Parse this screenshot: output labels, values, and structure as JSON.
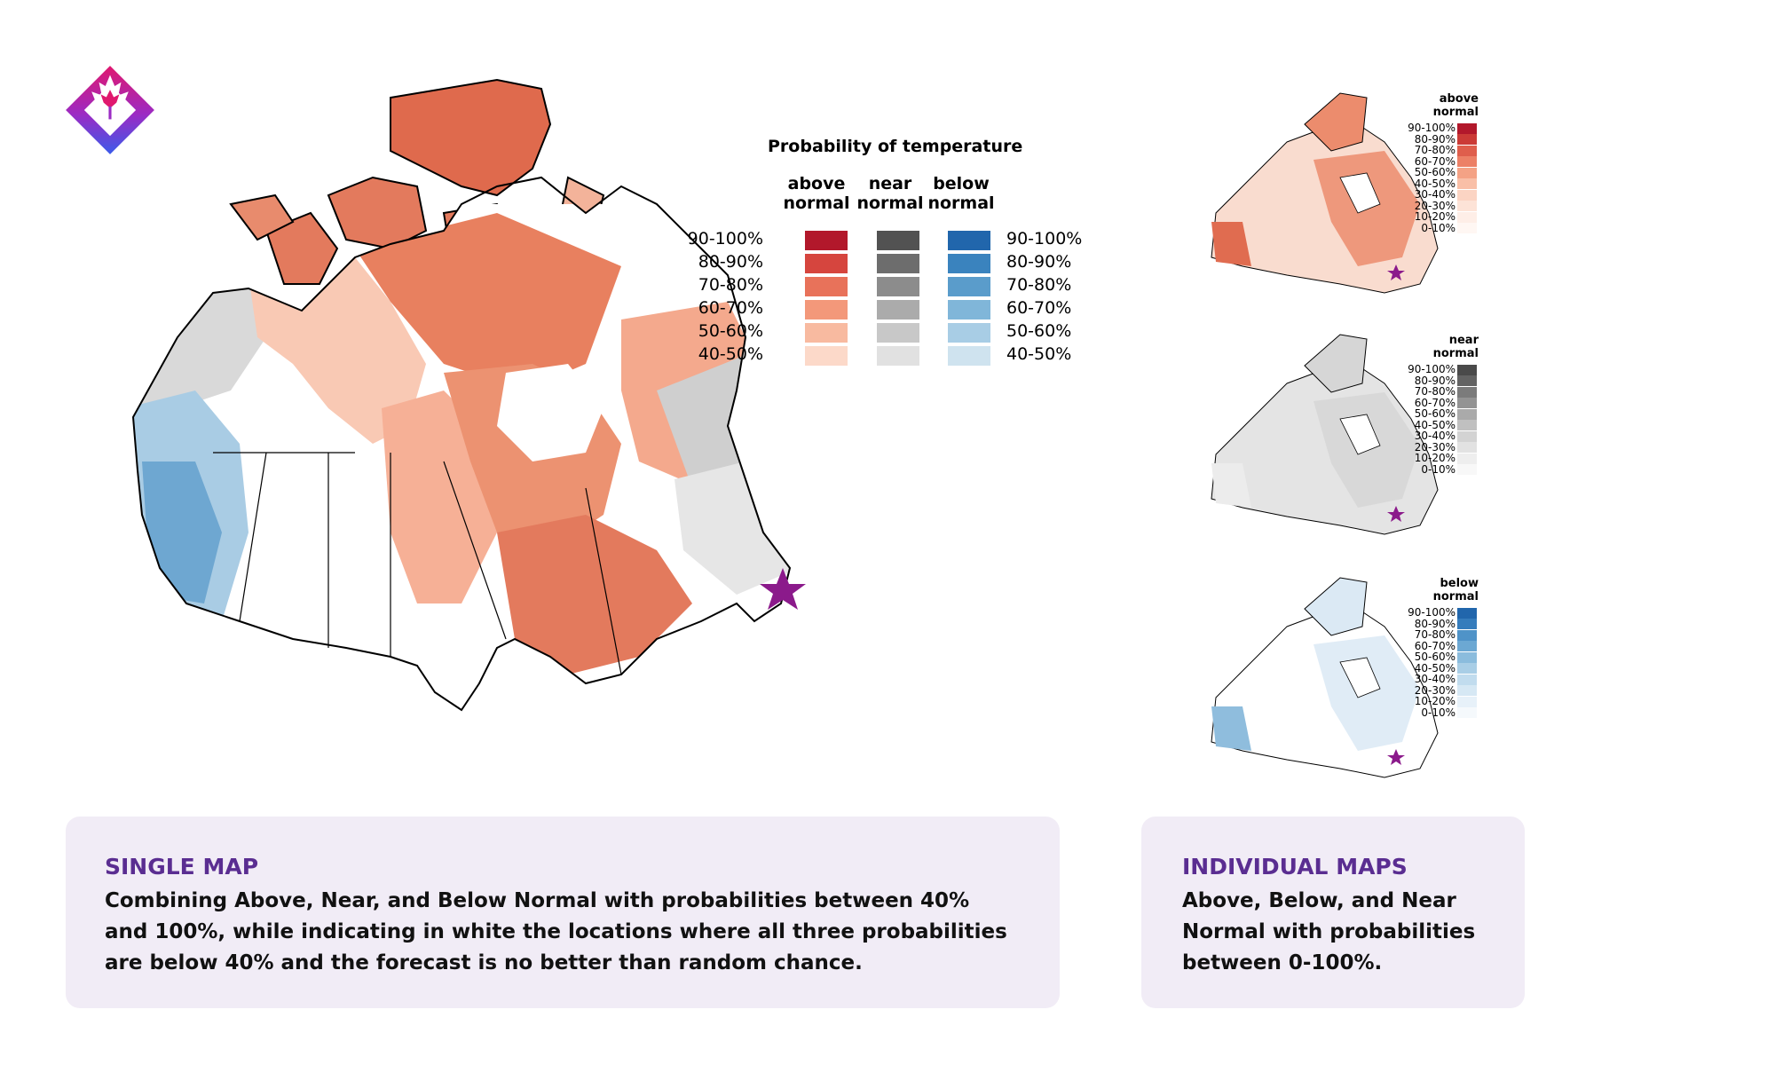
{
  "legend": {
    "title": "Probability of temperature",
    "headers": {
      "above": "above\nnormal",
      "near": "near\nnormal",
      "below": "below\nnormal"
    },
    "levels": [
      "90-100%",
      "80-90%",
      "70-80%",
      "60-70%",
      "50-60%",
      "40-50%"
    ],
    "colors": {
      "above": [
        "#b2182b",
        "#d6453e",
        "#e8725a",
        "#f3987a",
        "#f8baa0",
        "#fcd9c9"
      ],
      "near": [
        "#525252",
        "#6d6d6d",
        "#8c8c8c",
        "#ababab",
        "#c8c8c8",
        "#e1e1e1"
      ],
      "below": [
        "#2166ac",
        "#3a83be",
        "#5a9ccb",
        "#80b6d9",
        "#a8cde5",
        "#cfe3ef"
      ]
    }
  },
  "mini_maps": [
    {
      "header": "above\nnormal",
      "levels": [
        "90-100%",
        "80-90%",
        "70-80%",
        "60-70%",
        "50-60%",
        "40-50%",
        "30-40%",
        "20-30%",
        "10-20%",
        "0-10%"
      ],
      "colors": [
        "#b2182b",
        "#cb3a36",
        "#df5e4c",
        "#ec8066",
        "#f4a285",
        "#f9bfa7",
        "#fbd4c3",
        "#fde3d7",
        "#feeee7",
        "#fff7f3"
      ]
    },
    {
      "header": "near\nnormal",
      "levels": [
        "90-100%",
        "80-90%",
        "70-80%",
        "60-70%",
        "50-60%",
        "40-50%",
        "30-40%",
        "20-30%",
        "10-20%",
        "0-10%"
      ],
      "colors": [
        "#4a4a4a",
        "#636363",
        "#7b7b7b",
        "#939393",
        "#aaaaaa",
        "#c0c0c0",
        "#d3d3d3",
        "#e2e2e2",
        "#eeeeee",
        "#f8f8f8"
      ]
    },
    {
      "header": "below\nnormal",
      "levels": [
        "90-100%",
        "80-90%",
        "70-80%",
        "60-70%",
        "50-60%",
        "40-50%",
        "30-40%",
        "20-30%",
        "10-20%",
        "0-10%"
      ],
      "colors": [
        "#2166ac",
        "#357cbc",
        "#4f93c8",
        "#6ca8d3",
        "#8bbcdd",
        "#a9cee6",
        "#c1dcee",
        "#d6e8f4",
        "#e7f1f9",
        "#f5f9fc"
      ]
    }
  ],
  "card_single": {
    "title": "SINGLE MAP",
    "body": "Combining Above, Near, and Below Normal with probabilities between 40% and 100%, while indicating in white the locations where all three probabilities are below 40% and the forecast is no better than random chance."
  },
  "card_individual": {
    "title": "INDIVIDUAL MAPS",
    "body": "Above, Below, and Near Normal with probabilities between 0-100%."
  },
  "colors": {
    "brand_purple": "#5a2d91",
    "card_bg": "#f1ecf6",
    "star": "#8b1a8b"
  }
}
